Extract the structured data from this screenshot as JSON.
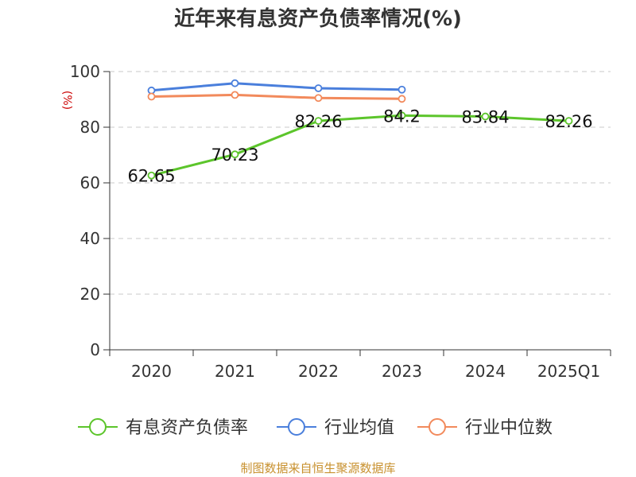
{
  "chart_data": {
    "type": "line",
    "title": "近年来有息资产负债率情况(%)",
    "ylabel": "(%)",
    "categories": [
      "2020",
      "2021",
      "2022",
      "2023",
      "2024",
      "2025Q1"
    ],
    "ylim": [
      0,
      100
    ],
    "yticks": [
      0,
      20,
      40,
      60,
      80,
      100
    ],
    "grid": true,
    "legend_position": "bottom",
    "series": [
      {
        "name": "有息资产负债率",
        "color": "#5cc52b",
        "values": [
          62.65,
          70.23,
          82.26,
          84.2,
          83.84,
          82.26
        ],
        "labels": [
          "62.65",
          "70.23",
          "82.26",
          "84.2",
          "83.84",
          "82.26"
        ]
      },
      {
        "name": "行业均值",
        "color": "#4a7fdc",
        "values": [
          93.2,
          95.8,
          94.0,
          93.5,
          null,
          null
        ]
      },
      {
        "name": "行业中位数",
        "color": "#f28a5c",
        "values": [
          91.0,
          91.6,
          90.5,
          90.2,
          null,
          null
        ]
      }
    ]
  },
  "source_text": "制图数据来自恒生聚源数据库"
}
